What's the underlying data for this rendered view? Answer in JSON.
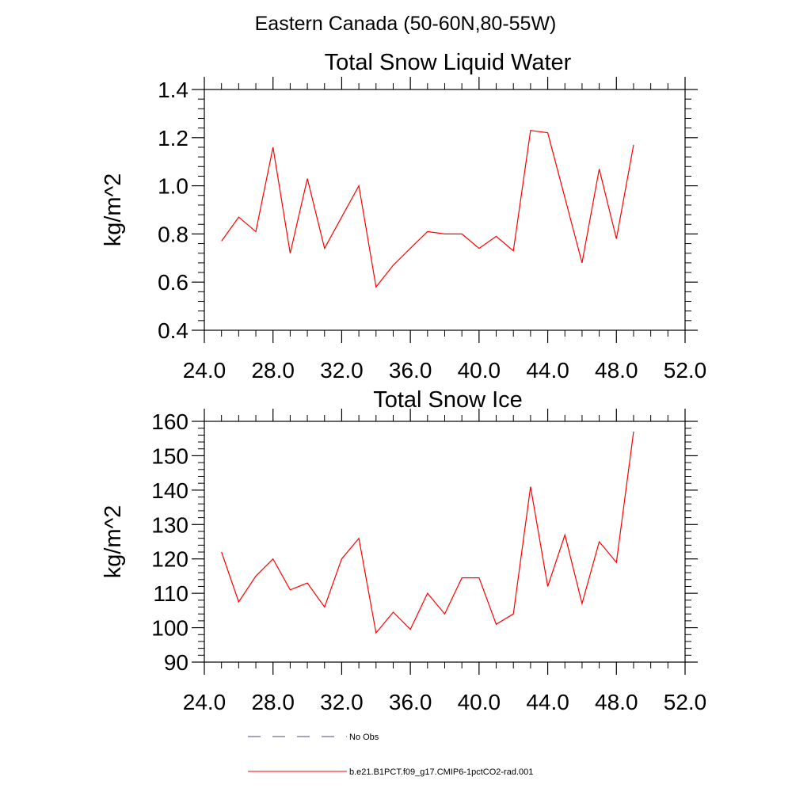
{
  "figure": {
    "title": "Eastern Canada (50-60N,80-55W)"
  },
  "chart_data": [
    {
      "type": "line",
      "title": "Total Snow Liquid Water",
      "xlabel": "",
      "ylabel": "kg/m^2",
      "xlim": [
        24,
        52
      ],
      "ylim": [
        0.4,
        1.4
      ],
      "xticks": [
        "24.0",
        "28.0",
        "32.0",
        "36.0",
        "40.0",
        "44.0",
        "48.0",
        "52.0"
      ],
      "yticks": [
        "0.4",
        "0.6",
        "0.8",
        "1.0",
        "1.2",
        "1.4"
      ],
      "grid": false,
      "series": [
        {
          "name": "b.e21.B1PCT.f09_g17.CMIP6-1pctCO2-rad.001",
          "color": "#ff0000",
          "x": [
            25,
            26,
            27,
            28,
            29,
            30,
            31,
            32,
            33,
            34,
            35,
            36,
            37,
            38,
            39,
            40,
            41,
            42,
            43,
            44,
            45,
            46,
            47,
            48,
            49
          ],
          "y": [
            0.77,
            0.87,
            0.81,
            1.16,
            0.72,
            1.03,
            0.74,
            0.87,
            1.0,
            0.58,
            0.67,
            0.74,
            0.81,
            0.8,
            0.8,
            0.74,
            0.79,
            0.73,
            1.23,
            1.22,
            0.95,
            0.68,
            1.07,
            0.78,
            1.17
          ]
        }
      ]
    },
    {
      "type": "line",
      "title": "Total Snow Ice",
      "xlabel": "",
      "ylabel": "kg/m^2",
      "xlim": [
        24,
        52
      ],
      "ylim": [
        90,
        160
      ],
      "xticks": [
        "24.0",
        "28.0",
        "32.0",
        "36.0",
        "40.0",
        "44.0",
        "48.0",
        "52.0"
      ],
      "yticks": [
        "90",
        "100",
        "110",
        "120",
        "130",
        "140",
        "150",
        "160"
      ],
      "grid": false,
      "series": [
        {
          "name": "b.e21.B1PCT.f09_g17.CMIP6-1pctCO2-rad.001",
          "color": "#ff0000",
          "x": [
            25,
            26,
            27,
            28,
            29,
            30,
            31,
            32,
            33,
            34,
            35,
            36,
            37,
            38,
            39,
            40,
            41,
            42,
            43,
            44,
            45,
            46,
            47,
            48,
            49
          ],
          "y": [
            122,
            107.5,
            115,
            120,
            111,
            113,
            106,
            120,
            126,
            98.5,
            104.5,
            99.5,
            110,
            104,
            114.5,
            114.5,
            101,
            104,
            141,
            112,
            127,
            107,
            125,
            119,
            157
          ]
        }
      ]
    }
  ],
  "legend": {
    "items": [
      {
        "label": "No Obs",
        "style": "dashed",
        "color": "#4a4a8c"
      },
      {
        "label": "b.e21.B1PCT.f09_g17.CMIP6-1pctCO2-rad.001",
        "style": "solid",
        "color": "#ff0000"
      }
    ]
  }
}
